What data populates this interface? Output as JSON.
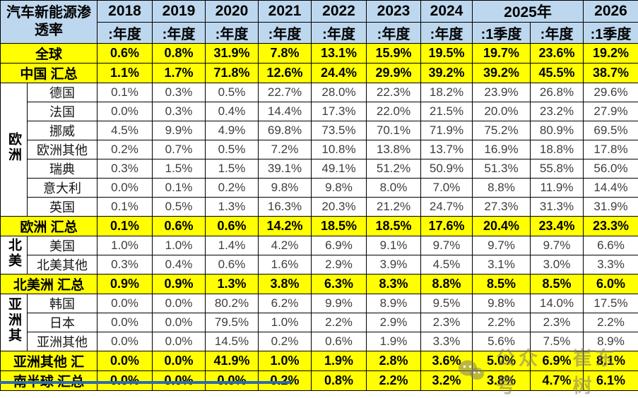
{
  "chart_data": {
    "type": "table",
    "title": "汽车新能源渗透率",
    "column_groups": [
      {
        "label": "2018",
        "span": 1
      },
      {
        "label": "2019",
        "span": 1
      },
      {
        "label": "2020",
        "span": 1
      },
      {
        "label": "2021",
        "span": 1
      },
      {
        "label": "2022",
        "span": 1
      },
      {
        "label": "2023",
        "span": 1
      },
      {
        "label": "2024",
        "span": 1
      },
      {
        "label": "2025年",
        "span": 2
      },
      {
        "label": "2026",
        "span": 1
      }
    ],
    "column_periods": [
      ":年度",
      ":年度",
      ":年度",
      ":年度",
      ":年度",
      ":年度",
      ":年度",
      ":1季度",
      ":年度",
      ":1季度"
    ],
    "rows": [
      {
        "type": "summary",
        "label": "全球",
        "values": [
          "0.6%",
          "0.8%",
          "31.9%",
          "7.8%",
          "13.1%",
          "15.9%",
          "19.5%",
          "19.7%",
          "23.6%",
          "19.2%"
        ]
      },
      {
        "type": "summary",
        "label": "中国 汇总",
        "values": [
          "1.1%",
          "1.7%",
          "71.8%",
          "12.6%",
          "24.4%",
          "29.9%",
          "39.2%",
          "39.2%",
          "45.5%",
          "38.7%"
        ]
      },
      {
        "type": "country",
        "group": {
          "label": "欧洲",
          "rowspan": 7
        },
        "label": "德国",
        "values": [
          "0.1%",
          "0.3%",
          "0.5%",
          "22.7%",
          "28.0%",
          "22.3%",
          "18.2%",
          "23.9%",
          "26.8%",
          "29.6%"
        ]
      },
      {
        "type": "country",
        "label": "法国",
        "values": [
          "0.0%",
          "0.3%",
          "0.4%",
          "14.4%",
          "17.3%",
          "22.0%",
          "21.5%",
          "20.0%",
          "23.2%",
          "27.9%"
        ]
      },
      {
        "type": "country",
        "label": "挪威",
        "values": [
          "4.5%",
          "9.9%",
          "4.9%",
          "69.8%",
          "73.5%",
          "70.1%",
          "71.9%",
          "75.2%",
          "80.9%",
          "69.5%"
        ]
      },
      {
        "type": "country",
        "label": "欧洲其他",
        "values": [
          "0.2%",
          "0.7%",
          "0.5%",
          "7.2%",
          "10.8%",
          "13.8%",
          "13.7%",
          "16.9%",
          "18.8%",
          "17.8%"
        ]
      },
      {
        "type": "country",
        "label": "瑞典",
        "values": [
          "0.3%",
          "1.5%",
          "1.5%",
          "39.1%",
          "49.1%",
          "51.2%",
          "50.9%",
          "51.3%",
          "55.8%",
          "56.0%"
        ]
      },
      {
        "type": "country",
        "label": "意大利",
        "values": [
          "0.0%",
          "0.1%",
          "0.2%",
          "9.8%",
          "9.8%",
          "8.0%",
          "7.0%",
          "8.8%",
          "11.9%",
          "14.4%"
        ]
      },
      {
        "type": "country",
        "label": "英国",
        "values": [
          "0.1%",
          "0.5%",
          "1.3%",
          "16.3%",
          "20.3%",
          "21.2%",
          "24.7%",
          "27.3%",
          "31.3%",
          "31.9%"
        ]
      },
      {
        "type": "summary",
        "label": "欧洲 汇总",
        "values": [
          "0.1%",
          "0.6%",
          "0.6%",
          "14.2%",
          "18.5%",
          "18.5%",
          "17.6%",
          "20.4%",
          "23.4%",
          "23.3%"
        ]
      },
      {
        "type": "country",
        "group": {
          "label": "北美",
          "rowspan": 2
        },
        "label": "美国",
        "values": [
          "1.0%",
          "1.0%",
          "1.4%",
          "4.2%",
          "6.9%",
          "9.1%",
          "9.7%",
          "9.7%",
          "9.7%",
          "6.6%"
        ]
      },
      {
        "type": "country",
        "label": "北美其他",
        "values": [
          "0.3%",
          "0.4%",
          "0.6%",
          "1.6%",
          "2.9%",
          "3.9%",
          "4.5%",
          "3.1%",
          "3.0%",
          "3.3%"
        ]
      },
      {
        "type": "summary",
        "label": "北美洲 汇总",
        "values": [
          "0.9%",
          "0.9%",
          "1.3%",
          "3.8%",
          "6.3%",
          "8.3%",
          "8.8%",
          "8.5%",
          "8.5%",
          "6.0%"
        ]
      },
      {
        "type": "country",
        "group": {
          "label": "亚洲其",
          "rowspan": 3
        },
        "label": "韩国",
        "values": [
          "0.0%",
          "0.0%",
          "80.2%",
          "6.2%",
          "9.9%",
          "8.9%",
          "9.5%",
          "9.8%",
          "14.0%",
          "17.5%"
        ]
      },
      {
        "type": "country",
        "label": "日本",
        "values": [
          "0.0%",
          "0.0%",
          "79.5%",
          "1.0%",
          "2.2%",
          "2.9%",
          "2.3%",
          "2.2%",
          "2.3%",
          "2.2%"
        ]
      },
      {
        "type": "country",
        "label": "亚洲其他",
        "values": [
          "0.0%",
          "0.0%",
          "14.5%",
          "0.2%",
          "0.6%",
          "1.9%",
          "3.3%",
          "5.6%",
          "7.5%",
          "8.9%"
        ]
      },
      {
        "type": "summary",
        "label": "亚洲其他 汇",
        "values": [
          "0.0%",
          "0.0%",
          "41.9%",
          "1.0%",
          "1.9%",
          "2.8%",
          "3.6%",
          "5.0%",
          "6.9%",
          "8.1%"
        ]
      },
      {
        "type": "summary",
        "label": "南半球 汇总",
        "values": [
          "0.0%",
          "0.0%",
          "0.0%",
          "0.2%",
          "0.8%",
          "2.2%",
          "3.2%",
          "3.8%",
          "4.7%",
          "6.1%"
        ]
      }
    ]
  },
  "watermark": {
    "icon": "wechat-icon",
    "prefix": "公众号",
    "name": "崔东树"
  },
  "colors": {
    "header_bg": "#BDD7EE",
    "highlight_bg": "#FFFF00",
    "border": "#000000",
    "value_text": "#3D3D3D",
    "edge_strip": "#2B6BB3"
  }
}
